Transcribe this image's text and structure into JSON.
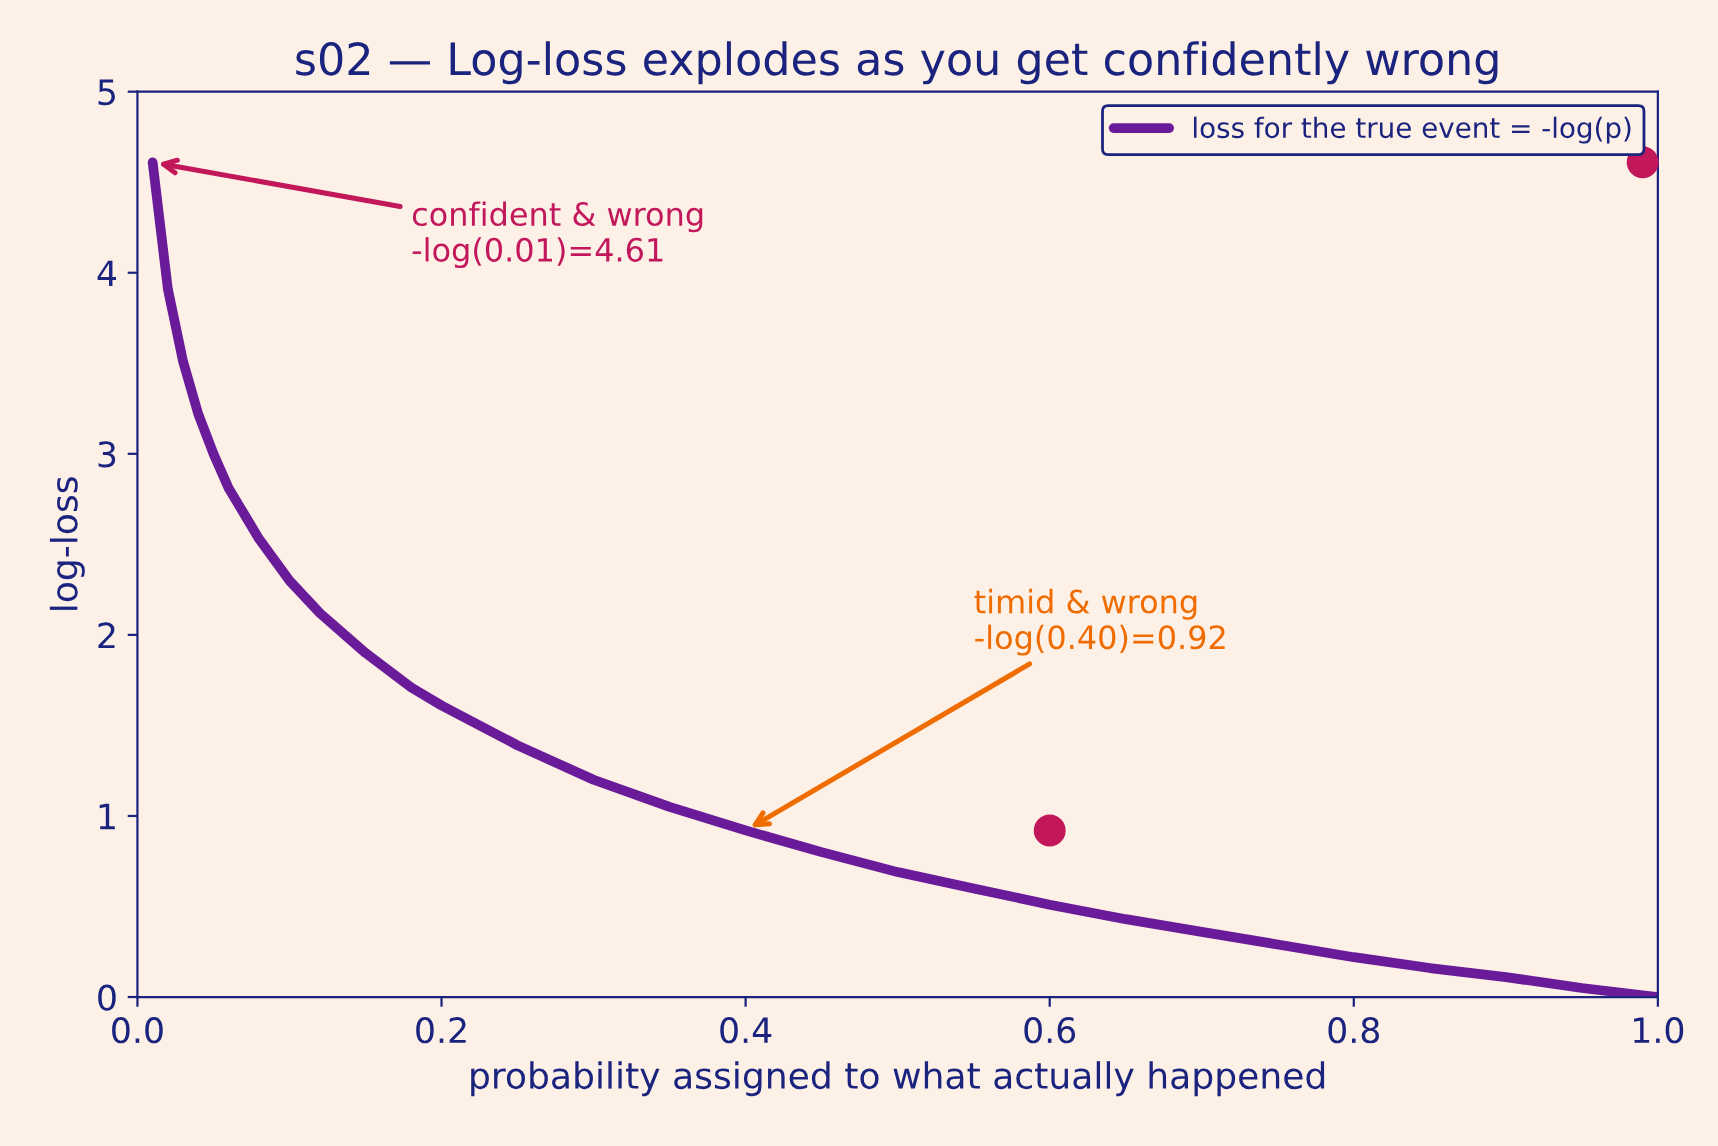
{
  "chart_data": {
    "type": "line",
    "title": "s02 — Log-loss explodes as you get confidently wrong",
    "xlabel": "probability assigned to what actually happened",
    "ylabel": "log-loss",
    "series": [
      {
        "name": "loss for the true event = -log(p)",
        "color": "#6a1b9a",
        "x": [
          0.01,
          0.02,
          0.03,
          0.04,
          0.05,
          0.06,
          0.08,
          0.1,
          0.12,
          0.15,
          0.18,
          0.2,
          0.25,
          0.3,
          0.35,
          0.4,
          0.45,
          0.5,
          0.55,
          0.6,
          0.65,
          0.7,
          0.75,
          0.8,
          0.85,
          0.9,
          0.95,
          1.0
        ],
        "values": [
          4.61,
          3.91,
          3.51,
          3.22,
          3.0,
          2.81,
          2.53,
          2.3,
          2.12,
          1.9,
          1.71,
          1.61,
          1.39,
          1.2,
          1.05,
          0.92,
          0.8,
          0.69,
          0.6,
          0.51,
          0.43,
          0.36,
          0.29,
          0.22,
          0.16,
          0.11,
          0.05,
          0.0
        ]
      },
      {
        "type": "scatter",
        "color": "#c2185b",
        "x": [
          0.6,
          0.99
        ],
        "values": [
          0.92,
          4.61
        ],
        "marker": "circle"
      }
    ],
    "annotations": [
      {
        "text": "confident & wrong\n-log(0.01)=4.61",
        "x": 0.01,
        "y": 4.61
      },
      {
        "text": "timid & wrong\n-log(0.40)=0.92",
        "x": 0.4,
        "y": 0.92
      }
    ],
    "xlim": [
      0.0,
      1.0
    ],
    "xticks": [
      {
        "value": 0,
        "label": "0.0"
      },
      0.2,
      0.4,
      0.6,
      0.8,
      {
        "value": 1,
        "label": "1.0"
      }
    ],
    "ylim": [
      0,
      5
    ],
    "yticks": [
      0,
      1,
      2,
      3,
      4,
      5
    ],
    "grid": false,
    "legend": "top right"
  }
}
